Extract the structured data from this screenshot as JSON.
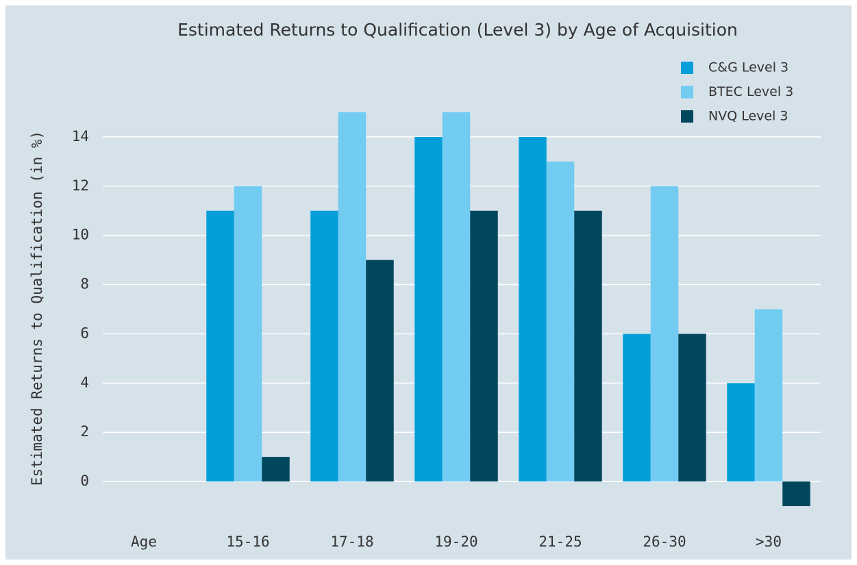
{
  "chart_data": {
    "type": "bar",
    "title": "Estimated Returns to Qualification (Level 3) by Age of Acquisition",
    "y_label": "Estimated Returns to Qualification (in %)",
    "categories": [
      "Age",
      "15-16",
      "17-18",
      "19-20",
      "21-25",
      "26-30",
      ">30"
    ],
    "series": [
      {
        "name": "C&G Level 3",
        "color": "#049fd9",
        "values": [
          null,
          11,
          11,
          14,
          14,
          6,
          4
        ]
      },
      {
        "name": "BTEC Level 3",
        "color": "#72cbf1",
        "values": [
          null,
          12,
          15,
          15,
          13,
          12,
          7
        ]
      },
      {
        "name": "NVQ Level 3",
        "color": "#00475e",
        "values": [
          null,
          1,
          9,
          11,
          11,
          6,
          -1
        ]
      }
    ],
    "ylim": [
      -1.5,
      15.5
    ],
    "yticks": [
      0,
      2,
      4,
      6,
      8,
      10,
      12,
      14
    ],
    "grid": true,
    "legend": "top-right"
  }
}
